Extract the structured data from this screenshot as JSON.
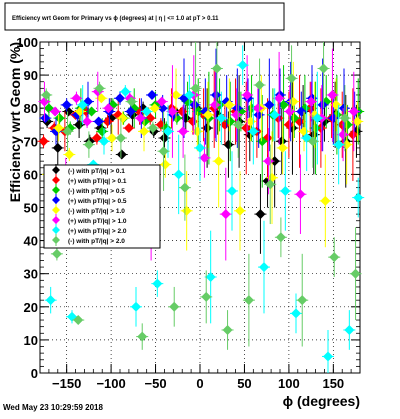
{
  "footer": {
    "timestamp": "Wed May 23 10:29:59 2018"
  },
  "chart_data": {
    "type": "scatter",
    "title": "Efficiency wrt Geom for Primary vs ϕ (degrees) at | η | <= 1.0 at pT > 0.11",
    "xlabel": "ϕ (degrees)",
    "ylabel": "Efficiency wrt Geom (%)",
    "xlim": [
      -180,
      180
    ],
    "ylim": [
      0,
      100
    ],
    "xticks": [
      -150,
      -100,
      -50,
      0,
      50,
      100,
      150
    ],
    "yticks": [
      0,
      10,
      20,
      30,
      40,
      50,
      60,
      70,
      80,
      90,
      100
    ],
    "grid": true,
    "legend_position": "left-middle",
    "series": [
      {
        "name": "(-) with pT/|q| > 0.1",
        "color": "#000000",
        "points": [
          [
            -172,
            76
          ],
          [
            -160,
            68
          ],
          [
            -148,
            79
          ],
          [
            -136,
            75
          ],
          [
            -124,
            70
          ],
          [
            -112,
            74
          ],
          [
            -100,
            77
          ],
          [
            -88,
            66
          ],
          [
            -76,
            78
          ],
          [
            -64,
            80
          ],
          [
            -52,
            73
          ],
          [
            -40,
            71
          ],
          [
            -28,
            79
          ],
          [
            -16,
            77
          ],
          [
            -4,
            80
          ],
          [
            8,
            74
          ],
          [
            20,
            78
          ],
          [
            32,
            69
          ],
          [
            44,
            76
          ],
          [
            56,
            72
          ],
          [
            68,
            48
          ],
          [
            76,
            58
          ],
          [
            84,
            64
          ],
          [
            92,
            70
          ],
          [
            104,
            74
          ],
          [
            116,
            79
          ],
          [
            128,
            72
          ],
          [
            140,
            76
          ],
          [
            152,
            78
          ],
          [
            164,
            70
          ],
          [
            176,
            73
          ]
        ]
      },
      {
        "name": "(+) with pT/|q| > 0.1",
        "color": "#ff0000",
        "points": [
          [
            -176,
            70
          ],
          [
            -164,
            74
          ],
          [
            -152,
            73
          ],
          [
            -140,
            78
          ],
          [
            -128,
            79
          ],
          [
            -116,
            71
          ],
          [
            -104,
            76
          ],
          [
            -92,
            78
          ],
          [
            -80,
            74
          ],
          [
            -68,
            79
          ],
          [
            -56,
            77
          ],
          [
            -44,
            75
          ],
          [
            -32,
            80
          ],
          [
            -20,
            79
          ],
          [
            -8,
            76
          ],
          [
            4,
            78
          ],
          [
            16,
            80
          ],
          [
            28,
            75
          ],
          [
            40,
            79
          ],
          [
            52,
            74
          ],
          [
            64,
            73
          ],
          [
            76,
            71
          ],
          [
            88,
            77
          ],
          [
            100,
            75
          ],
          [
            112,
            76
          ],
          [
            124,
            80
          ],
          [
            136,
            74
          ],
          [
            148,
            77
          ],
          [
            160,
            75
          ],
          [
            172,
            72
          ]
        ]
      },
      {
        "name": "(-) with pT/|q| > 0.5",
        "color": "#00cc00",
        "points": [
          [
            -170,
            80
          ],
          [
            -158,
            77
          ],
          [
            -146,
            74
          ],
          [
            -134,
            80
          ],
          [
            -122,
            79
          ],
          [
            -110,
            73
          ],
          [
            -98,
            81
          ],
          [
            -86,
            77
          ],
          [
            -74,
            80
          ],
          [
            -62,
            76
          ],
          [
            -50,
            81
          ],
          [
            -38,
            74
          ],
          [
            -26,
            77
          ],
          [
            -14,
            82
          ],
          [
            -2,
            79
          ],
          [
            10,
            77
          ],
          [
            22,
            81
          ],
          [
            34,
            76
          ],
          [
            46,
            79
          ],
          [
            58,
            80
          ],
          [
            70,
            70
          ],
          [
            82,
            78
          ],
          [
            94,
            81
          ],
          [
            106,
            77
          ],
          [
            118,
            80
          ],
          [
            130,
            74
          ],
          [
            142,
            82
          ],
          [
            154,
            78
          ],
          [
            166,
            75
          ],
          [
            178,
            79
          ]
        ]
      },
      {
        "name": "(+) with pT/|q| > 0.5",
        "color": "#0000ff",
        "points": [
          [
            -174,
            77
          ],
          [
            -162,
            73
          ],
          [
            -150,
            81
          ],
          [
            -138,
            78
          ],
          [
            -126,
            82
          ],
          [
            -114,
            76
          ],
          [
            -102,
            79
          ],
          [
            -90,
            83
          ],
          [
            -78,
            79
          ],
          [
            -66,
            77
          ],
          [
            -54,
            84
          ],
          [
            -42,
            80
          ],
          [
            -30,
            78
          ],
          [
            -18,
            83
          ],
          [
            -6,
            81
          ],
          [
            6,
            79
          ],
          [
            18,
            84
          ],
          [
            30,
            82
          ],
          [
            42,
            80
          ],
          [
            54,
            83
          ],
          [
            66,
            78
          ],
          [
            78,
            81
          ],
          [
            90,
            84
          ],
          [
            102,
            82
          ],
          [
            114,
            79
          ],
          [
            126,
            83
          ],
          [
            138,
            81
          ],
          [
            150,
            77
          ],
          [
            162,
            80
          ],
          [
            174,
            79
          ]
        ]
      },
      {
        "name": "(-) with pT/|q| > 1.0",
        "color": "#ffff00",
        "points": [
          [
            -171,
            60
          ],
          [
            -159,
            74
          ],
          [
            -147,
            66
          ],
          [
            -135,
            79
          ],
          [
            -123,
            53
          ],
          [
            -111,
            83
          ],
          [
            -99,
            71
          ],
          [
            -87,
            77
          ],
          [
            -75,
            49
          ],
          [
            -63,
            73
          ],
          [
            -51,
            80
          ],
          [
            -39,
            63
          ],
          [
            -27,
            84
          ],
          [
            -15,
            49
          ],
          [
            -3,
            73
          ],
          [
            9,
            78
          ],
          [
            21,
            64
          ],
          [
            33,
            81
          ],
          [
            45,
            49
          ],
          [
            57,
            76
          ],
          [
            69,
            80
          ],
          [
            81,
            59
          ],
          [
            93,
            68
          ],
          [
            105,
            82
          ],
          [
            117,
            73
          ],
          [
            129,
            78
          ],
          [
            141,
            52
          ],
          [
            153,
            81
          ],
          [
            165,
            69
          ],
          [
            177,
            76
          ]
        ]
      },
      {
        "name": "(+) with pT/|q| > 1.0",
        "color": "#ff00ff",
        "points": [
          [
            -175,
            82
          ],
          [
            -163,
            79
          ],
          [
            -151,
            61
          ],
          [
            -139,
            83
          ],
          [
            -127,
            76
          ],
          [
            -115,
            85
          ],
          [
            -103,
            80
          ],
          [
            -91,
            57
          ],
          [
            -79,
            83
          ],
          [
            -67,
            77
          ],
          [
            -55,
            40
          ],
          [
            -43,
            82
          ],
          [
            -31,
            79
          ],
          [
            -19,
            73
          ],
          [
            -7,
            84
          ],
          [
            5,
            65
          ],
          [
            17,
            81
          ],
          [
            29,
            48
          ],
          [
            41,
            78
          ],
          [
            53,
            84
          ],
          [
            65,
            80
          ],
          [
            77,
            64
          ],
          [
            89,
            83
          ],
          [
            101,
            79
          ],
          [
            113,
            54
          ],
          [
            125,
            82
          ],
          [
            137,
            77
          ],
          [
            149,
            84
          ],
          [
            161,
            72
          ],
          [
            173,
            79
          ]
        ]
      },
      {
        "name": "(+) with pT/|q| > 2.0",
        "color": "#00ffff",
        "points": [
          [
            -168,
            22
          ],
          [
            -156,
            61
          ],
          [
            -144,
            17
          ],
          [
            -132,
            81
          ],
          [
            -120,
            63
          ],
          [
            -108,
            70
          ],
          [
            -96,
            41
          ],
          [
            -84,
            85
          ],
          [
            -72,
            20
          ],
          [
            -60,
            79
          ],
          [
            -48,
            27
          ],
          [
            -36,
            73
          ],
          [
            -24,
            60
          ],
          [
            -12,
            84
          ],
          [
            0,
            68
          ],
          [
            12,
            29
          ],
          [
            24,
            77
          ],
          [
            36,
            55
          ],
          [
            48,
            93
          ],
          [
            60,
            73
          ],
          [
            72,
            32
          ],
          [
            84,
            78
          ],
          [
            96,
            55
          ],
          [
            108,
            18
          ],
          [
            120,
            71
          ],
          [
            132,
            77
          ],
          [
            144,
            5
          ],
          [
            156,
            69
          ],
          [
            168,
            13
          ],
          [
            178,
            53
          ]
        ]
      },
      {
        "name": "(-) with pT/|q| > 2.0",
        "color": "#66cc66",
        "points": [
          [
            -173,
            84
          ],
          [
            -161,
            36
          ],
          [
            -149,
            73
          ],
          [
            -137,
            16
          ],
          [
            -125,
            69
          ],
          [
            -113,
            86
          ],
          [
            -101,
            40
          ],
          [
            -89,
            71
          ],
          [
            -77,
            82
          ],
          [
            -65,
            11
          ],
          [
            -53,
            74
          ],
          [
            -41,
            67
          ],
          [
            -29,
            20
          ],
          [
            -17,
            56
          ],
          [
            -5,
            86
          ],
          [
            7,
            23
          ],
          [
            19,
            92
          ],
          [
            31,
            13
          ],
          [
            43,
            75
          ],
          [
            55,
            22
          ],
          [
            67,
            87
          ],
          [
            79,
            57
          ],
          [
            91,
            41
          ],
          [
            103,
            89
          ],
          [
            115,
            22
          ],
          [
            127,
            70
          ],
          [
            139,
            92
          ],
          [
            151,
            35
          ],
          [
            163,
            77
          ],
          [
            175,
            30
          ]
        ]
      }
    ]
  }
}
